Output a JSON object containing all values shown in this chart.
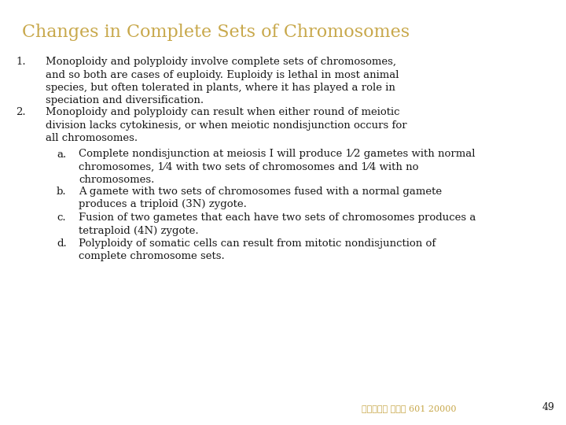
{
  "title": "Changes in Complete Sets of Chromosomes",
  "title_color": "#C8A84B",
  "bg_color": "#FFFFFF",
  "text_color": "#1a1a1a",
  "body_font_size": 9.5,
  "title_font_size": 16,
  "footer_text": "台大農艺系 遺傳學 601 20000",
  "footer_color": "#C8A84B",
  "page_number": "49",
  "items": [
    {
      "number": "1.",
      "text": "Monoploidy and polyploidy involve complete sets of chromosomes,\nand so both are cases of euploidy. Euploidy is lethal in most animal\nspecies, but often tolerated in plants, where it has played a role in\nspeciation and diversification.",
      "lines": 4
    },
    {
      "number": "2.",
      "text": "Monoploidy and polyploidy can result when either round of meiotic\ndivision lacks cytokinesis, or when meiotic nondisjunction occurs for\nall chromosomes.",
      "lines": 3
    }
  ],
  "sub_items": [
    {
      "letter": "a.",
      "text": "Complete nondisjunction at meiosis I will produce 1⁄2 gametes with normal\nchromosomes, 1⁄4 with two sets of chromosomes and 1⁄4 with no\nchromosomes.",
      "lines": 3
    },
    {
      "letter": "b.",
      "text": "A gamete with two sets of chromosomes fused with a normal gamete\nproduces a triploid (3N) zygote.",
      "lines": 2
    },
    {
      "letter": "c.",
      "text": "Fusion of two gametes that each have two sets of chromosomes produces a\ntetraploid (4N) zygote.",
      "lines": 2
    },
    {
      "letter": "d.",
      "text": "Polyploidy of somatic cells can result from mitotic nondisjunction of\ncomplete chromosome sets.",
      "lines": 2
    }
  ]
}
